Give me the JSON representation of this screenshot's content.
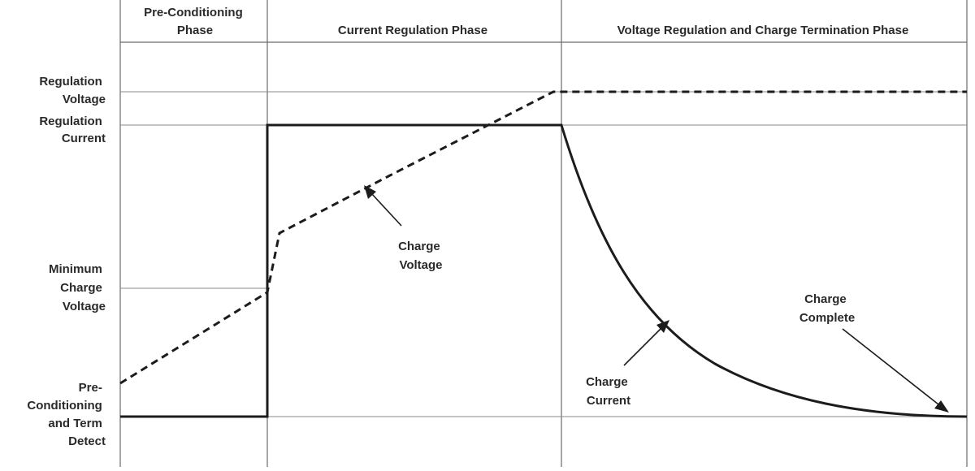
{
  "phases": {
    "preconditioning": [
      "Pre-Conditioning",
      "Phase"
    ],
    "current_regulation": "Current Regulation Phase",
    "voltage_regulation": "Voltage Regulation and Charge Termination Phase"
  },
  "levels": {
    "regulation_voltage": [
      "Regulation",
      "Voltage"
    ],
    "regulation_current": [
      "Regulation",
      "Current"
    ],
    "minimum_charge_voltage": [
      "Minimum",
      "Charge",
      "Voltage"
    ],
    "preconditioning_term_detect": [
      "Pre-",
      "Conditioning",
      "and Term",
      "Detect"
    ]
  },
  "annotations": {
    "charge_voltage": [
      "Charge",
      "Voltage"
    ],
    "charge_current": [
      "Charge",
      "Current"
    ],
    "charge_complete": [
      "Charge",
      "Complete"
    ]
  }
}
